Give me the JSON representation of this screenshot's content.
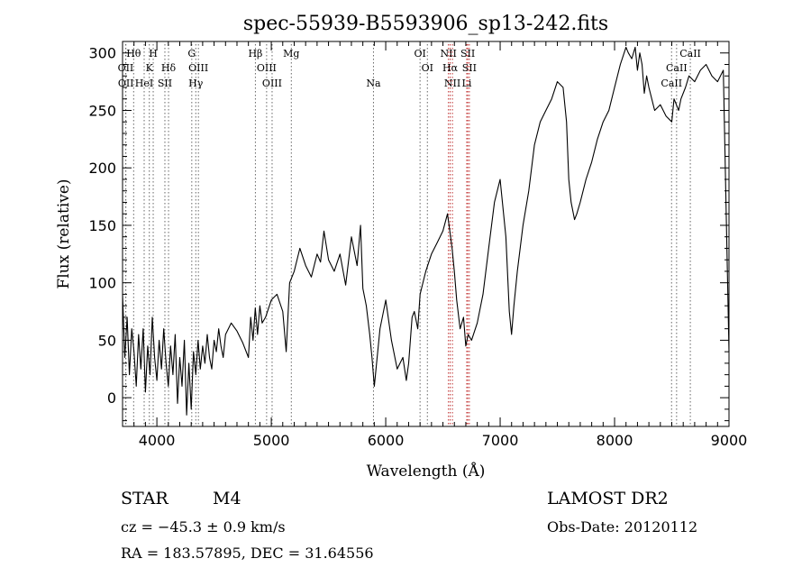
{
  "chart_data": {
    "type": "line",
    "title": "spec-55939-B5593906_sp13-242.fits",
    "xlabel": "Wavelength (Å)",
    "ylabel": "Flux (relative)",
    "xlim": [
      3700,
      9000
    ],
    "ylim": [
      -25,
      310
    ],
    "x_ticks": [
      4000,
      5000,
      6000,
      7000,
      8000,
      9000
    ],
    "y_ticks": [
      0,
      50,
      100,
      150,
      200,
      250,
      300
    ],
    "grid": false,
    "series": [
      {
        "x": [
          3700,
          3720,
          3740,
          3760,
          3780,
          3800,
          3820,
          3840,
          3860,
          3880,
          3900,
          3920,
          3940,
          3960,
          3980,
          4000,
          4020,
          4040,
          4060,
          4080,
          4100,
          4120,
          4140,
          4160,
          4180,
          4200,
          4220,
          4240,
          4260,
          4280,
          4300,
          4320,
          4340,
          4360,
          4380,
          4400,
          4420,
          4440,
          4460,
          4480,
          4500,
          4520,
          4540,
          4560,
          4580,
          4600,
          4650,
          4700,
          4750,
          4800,
          4820,
          4840,
          4860,
          4880,
          4900,
          4920,
          4950,
          5000,
          5050,
          5100,
          5130,
          5160,
          5200,
          5250,
          5300,
          5350,
          5400,
          5430,
          5460,
          5500,
          5550,
          5600,
          5650,
          5700,
          5750,
          5780,
          5800,
          5830,
          5860,
          5880,
          5900,
          5920,
          5950,
          6000,
          6050,
          6100,
          6150,
          6180,
          6200,
          6230,
          6250,
          6280,
          6300,
          6350,
          6400,
          6450,
          6500,
          6540,
          6560,
          6580,
          6600,
          6620,
          6650,
          6680,
          6700,
          6720,
          6750,
          6800,
          6850,
          6900,
          6950,
          7000,
          7050,
          7080,
          7100,
          7120,
          7150,
          7200,
          7250,
          7300,
          7350,
          7400,
          7450,
          7500,
          7550,
          7580,
          7600,
          7620,
          7650,
          7670,
          7700,
          7750,
          7800,
          7850,
          7900,
          7950,
          8000,
          8050,
          8100,
          8120,
          8150,
          8180,
          8200,
          8220,
          8240,
          8260,
          8280,
          8300,
          8350,
          8400,
          8450,
          8500,
          8520,
          8540,
          8560,
          8580,
          8620,
          8650,
          8700,
          8750,
          8800,
          8850,
          8900,
          8950,
          9000
        ],
        "values": [
          90,
          35,
          70,
          20,
          60,
          40,
          10,
          55,
          25,
          60,
          5,
          45,
          20,
          70,
          35,
          15,
          50,
          25,
          60,
          30,
          10,
          45,
          20,
          55,
          -5,
          35,
          10,
          50,
          -15,
          30,
          -10,
          40,
          20,
          50,
          25,
          45,
          30,
          55,
          35,
          25,
          50,
          40,
          60,
          45,
          35,
          55,
          65,
          58,
          48,
          35,
          70,
          50,
          78,
          55,
          80,
          65,
          70,
          85,
          90,
          75,
          40,
          100,
          110,
          130,
          115,
          105,
          125,
          118,
          145,
          120,
          110,
          125,
          98,
          140,
          115,
          150,
          95,
          80,
          55,
          35,
          10,
          30,
          60,
          85,
          50,
          25,
          35,
          15,
          30,
          70,
          75,
          60,
          90,
          110,
          125,
          135,
          145,
          160,
          145,
          130,
          110,
          85,
          60,
          70,
          45,
          55,
          50,
          65,
          90,
          130,
          170,
          190,
          140,
          75,
          55,
          80,
          110,
          150,
          180,
          220,
          240,
          250,
          260,
          275,
          270,
          240,
          190,
          170,
          155,
          160,
          170,
          190,
          205,
          225,
          240,
          250,
          270,
          290,
          305,
          300,
          295,
          305,
          285,
          300,
          290,
          265,
          280,
          270,
          250,
          255,
          245,
          240,
          260,
          255,
          250,
          260,
          270,
          280,
          275,
          285,
          290,
          280,
          275,
          285,
          40
        ]
      }
    ],
    "line_markers": [
      {
        "label": "Hθ",
        "wavelength": 3797,
        "row": 1
      },
      {
        "label": "OII",
        "wavelength": 3727,
        "row": 2
      },
      {
        "label": "OII",
        "wavelength": 3729,
        "row": 3
      },
      {
        "label": "H",
        "wavelength": 3968,
        "row": 1
      },
      {
        "label": "K",
        "wavelength": 3934,
        "row": 2
      },
      {
        "label": "HeI",
        "wavelength": 3889,
        "row": 3
      },
      {
        "label": "Hδ",
        "wavelength": 4102,
        "row": 2
      },
      {
        "label": "SII",
        "wavelength": 4070,
        "row": 3
      },
      {
        "label": "G",
        "wavelength": 4305,
        "row": 1
      },
      {
        "label": "OIII",
        "wavelength": 4363,
        "row": 2
      },
      {
        "label": "Hγ",
        "wavelength": 4340,
        "row": 3
      },
      {
        "label": "Hβ",
        "wavelength": 4861,
        "row": 1
      },
      {
        "label": "OIII",
        "wavelength": 4959,
        "row": 2
      },
      {
        "label": "OIII",
        "wavelength": 5007,
        "row": 3
      },
      {
        "label": "Mg",
        "wavelength": 5175,
        "row": 1
      },
      {
        "label": "Na",
        "wavelength": 5893,
        "row": 3
      },
      {
        "label": "OI",
        "wavelength": 6300,
        "row": 1
      },
      {
        "label": "OI",
        "wavelength": 6364,
        "row": 2
      },
      {
        "label": "NII",
        "wavelength": 6548,
        "row": 1
      },
      {
        "label": "Hα",
        "wavelength": 6563,
        "row": 2
      },
      {
        "label": "NII",
        "wavelength": 6583,
        "row": 3
      },
      {
        "label": "SII",
        "wavelength": 6717,
        "row": 1
      },
      {
        "label": "SII",
        "wavelength": 6731,
        "row": 2
      },
      {
        "label": "Li",
        "wavelength": 6708,
        "row": 3
      },
      {
        "label": "CaII",
        "wavelength": 8662,
        "row": 1
      },
      {
        "label": "CaII",
        "wavelength": 8542,
        "row": 2
      },
      {
        "label": "CaII",
        "wavelength": 8498,
        "row": 3
      }
    ]
  },
  "info": {
    "class_label": "STAR",
    "subclass": "M4",
    "survey": "LAMOST DR2",
    "cz": "cz = −45.3 ± 0.9 km/s",
    "obs_date": "Obs-Date: 20120112",
    "coords": "RA = 183.57895, DEC =  31.64556"
  }
}
